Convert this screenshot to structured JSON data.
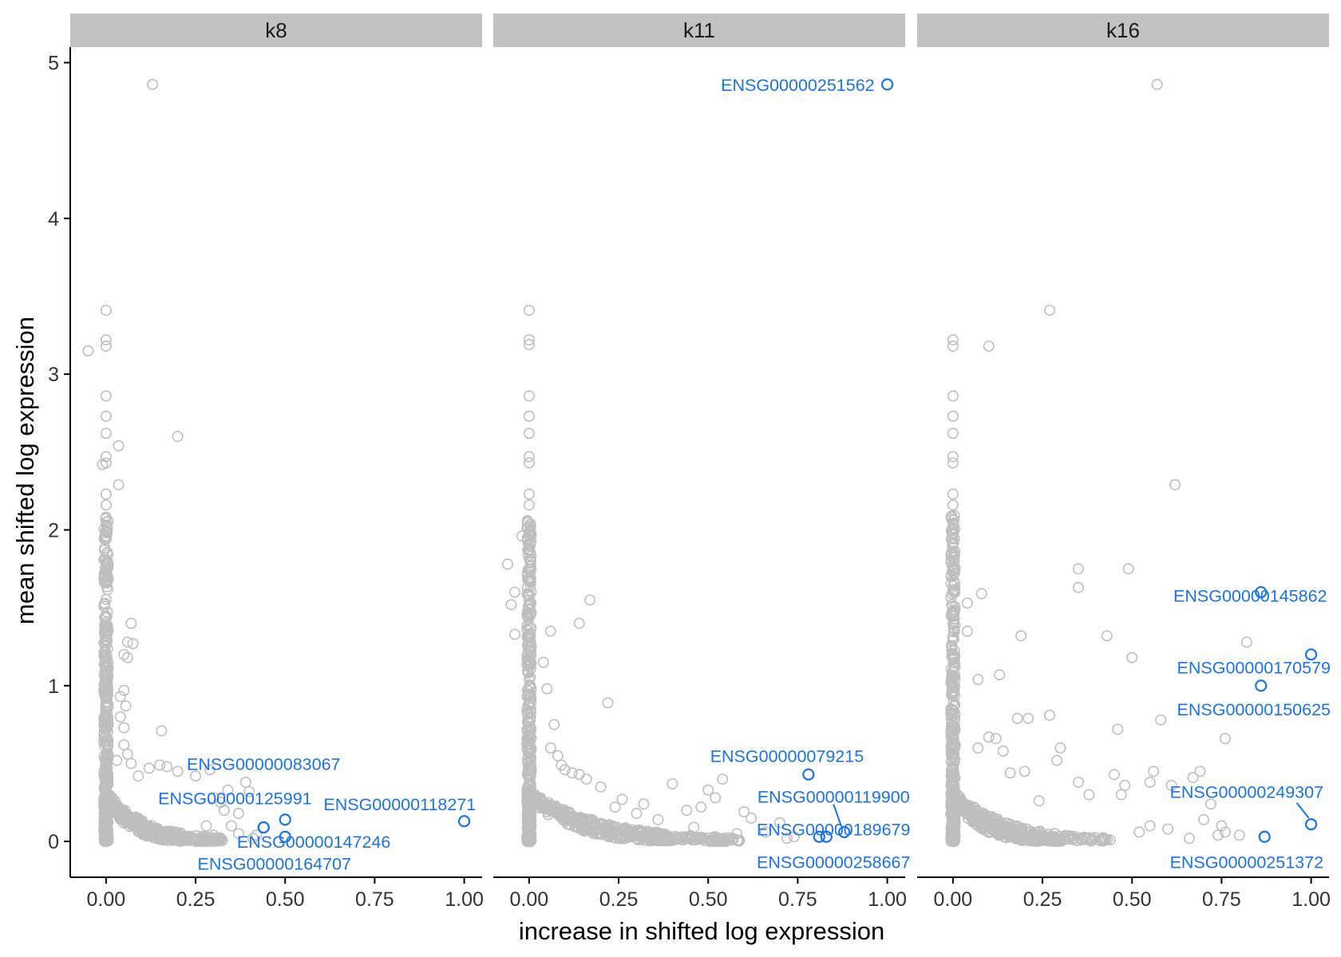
{
  "chart_data": {
    "type": "scatter",
    "facets": [
      "k8",
      "k11",
      "k16"
    ],
    "xlabel": "increase in shifted log expression",
    "ylabel": "mean shifted log expression",
    "xlim": [
      -0.1,
      1.05
    ],
    "ylim": [
      -0.23,
      5.1
    ],
    "x_ticks": [
      0,
      0.25,
      0.5,
      0.75,
      1
    ],
    "x_tick_labels": [
      "0.00",
      "0.25",
      "0.50",
      "0.75",
      "1.00"
    ],
    "y_ticks": [
      0,
      1,
      2,
      3,
      4,
      5
    ],
    "y_tick_labels": [
      "0",
      "1",
      "2",
      "3",
      "4",
      "5"
    ],
    "background_color": "#bebebe",
    "highlight_color": "#1a73e8",
    "strip_color": "#c2c2c2",
    "grid": false,
    "legend": "none",
    "panels": [
      {
        "name": "k8",
        "highlighted": [
          {
            "label": "ENSG00000083067",
            "x": 0.44,
            "y": 0.09
          },
          {
            "label": "ENSG00000125991",
            "x": 0.5,
            "y": 0.14
          },
          {
            "label": "ENSG00000118271",
            "x": 1.0,
            "y": 0.13
          },
          {
            "label": "ENSG00000147246",
            "x": 0.5,
            "y": 0.03
          },
          {
            "label": "ENSG00000164707",
            "x": 0.44,
            "y": 0.09
          }
        ],
        "background": [
          [
            -0.05,
            3.15
          ],
          [
            0.0,
            3.41
          ],
          [
            0.0,
            3.22
          ],
          [
            0.0,
            3.18
          ],
          [
            0.0,
            2.86
          ],
          [
            0.0,
            2.73
          ],
          [
            0.0,
            2.62
          ],
          [
            0.0,
            2.47
          ],
          [
            0.0,
            2.43
          ],
          [
            -0.01,
            2.42
          ],
          [
            0.035,
            2.54
          ],
          [
            0.035,
            2.29
          ],
          [
            0.0,
            2.23
          ],
          [
            0.0,
            2.16
          ],
          [
            0.0,
            2.05
          ],
          [
            0.2,
            2.6
          ],
          [
            0.13,
            4.86
          ],
          [
            0.07,
            1.4
          ],
          [
            0.06,
            1.28
          ],
          [
            0.075,
            1.27
          ],
          [
            0.05,
            1.2
          ],
          [
            0.06,
            1.18
          ],
          [
            0.05,
            0.97
          ],
          [
            0.04,
            0.93
          ],
          [
            0.055,
            0.87
          ],
          [
            0.04,
            0.8
          ],
          [
            0.05,
            0.73
          ],
          [
            0.155,
            0.71
          ],
          [
            0.05,
            0.62
          ],
          [
            0.06,
            0.56
          ],
          [
            0.03,
            0.52
          ],
          [
            0.07,
            0.5
          ],
          [
            0.15,
            0.49
          ],
          [
            0.17,
            0.48
          ],
          [
            0.12,
            0.47
          ],
          [
            0.2,
            0.45
          ],
          [
            0.29,
            0.46
          ],
          [
            0.25,
            0.42
          ],
          [
            0.09,
            0.42
          ],
          [
            0.39,
            0.38
          ],
          [
            0.4,
            0.32
          ],
          [
            0.34,
            0.33
          ],
          [
            0.3,
            0.28
          ],
          [
            0.32,
            0.25
          ],
          [
            0.33,
            0.2
          ],
          [
            0.37,
            0.18
          ],
          [
            0.35,
            0.1
          ],
          [
            0.37,
            0.05
          ],
          [
            0.42,
            0.04
          ],
          [
            0.41,
            0.02
          ],
          [
            0.3,
            0.04
          ],
          [
            0.28,
            0.1
          ]
        ],
        "segments": [
          [
            0.0,
            0.0,
            0.22,
            0.02
          ],
          [
            0.0,
            0.0,
            0.33,
            0.03
          ],
          [
            0.0,
            0.0,
            0.28,
            0.01
          ]
        ]
      },
      {
        "name": "k11",
        "highlighted": [
          {
            "label": "ENSG00000251562",
            "x": 1.0,
            "y": 4.86
          },
          {
            "label": "ENSG00000079215",
            "x": 0.78,
            "y": 0.43
          },
          {
            "label": "ENSG00000119900",
            "x": 0.88,
            "y": 0.06
          },
          {
            "label": "ENSG00000189679",
            "x": 0.83,
            "y": 0.03
          },
          {
            "label": "ENSG00000258667",
            "x": 0.81,
            "y": 0.03
          }
        ],
        "background": [
          [
            0.0,
            3.41
          ],
          [
            0.0,
            3.22
          ],
          [
            0.0,
            3.19
          ],
          [
            0.0,
            2.86
          ],
          [
            0.0,
            2.73
          ],
          [
            0.0,
            2.62
          ],
          [
            0.0,
            2.47
          ],
          [
            0.0,
            2.43
          ],
          [
            0.0,
            2.23
          ],
          [
            0.0,
            2.16
          ],
          [
            -0.06,
            1.78
          ],
          [
            -0.02,
            1.96
          ],
          [
            -0.04,
            1.6
          ],
          [
            -0.05,
            1.52
          ],
          [
            0.0,
            1.55
          ],
          [
            0.17,
            1.55
          ],
          [
            0.14,
            1.4
          ],
          [
            -0.04,
            1.33
          ],
          [
            0.06,
            1.35
          ],
          [
            0.04,
            1.15
          ],
          [
            0.05,
            0.98
          ],
          [
            0.22,
            0.89
          ],
          [
            0.07,
            0.75
          ],
          [
            0.06,
            0.6
          ],
          [
            0.08,
            0.55
          ],
          [
            0.09,
            0.49
          ],
          [
            0.1,
            0.46
          ],
          [
            0.12,
            0.44
          ],
          [
            0.14,
            0.43
          ],
          [
            0.16,
            0.4
          ],
          [
            0.2,
            0.35
          ],
          [
            0.26,
            0.27
          ],
          [
            0.32,
            0.24
          ],
          [
            0.4,
            0.37
          ],
          [
            0.5,
            0.33
          ],
          [
            0.54,
            0.4
          ],
          [
            0.52,
            0.28
          ],
          [
            0.48,
            0.22
          ],
          [
            0.44,
            0.2
          ],
          [
            0.6,
            0.19
          ],
          [
            0.62,
            0.15
          ],
          [
            0.7,
            0.12
          ],
          [
            0.66,
            0.06
          ],
          [
            0.74,
            0.03
          ],
          [
            0.72,
            0.02
          ],
          [
            0.58,
            0.05
          ],
          [
            0.46,
            0.09
          ],
          [
            0.36,
            0.14
          ],
          [
            0.3,
            0.18
          ],
          [
            0.24,
            0.22
          ]
        ],
        "segments": [
          [
            0.0,
            0.0,
            0.4,
            0.02
          ],
          [
            0.0,
            0.0,
            0.55,
            0.03
          ],
          [
            0.0,
            0.0,
            0.6,
            0.01
          ]
        ]
      },
      {
        "name": "k16",
        "highlighted": [
          {
            "label": "ENSG00000145862",
            "x": 0.86,
            "y": 1.6
          },
          {
            "label": "ENSG00000170579",
            "x": 1.0,
            "y": 1.2
          },
          {
            "label": "ENSG00000150625",
            "x": 0.86,
            "y": 1.0
          },
          {
            "label": "ENSG00000249307",
            "x": 1.0,
            "y": 0.11
          },
          {
            "label": "ENSG00000251372",
            "x": 0.87,
            "y": 0.03
          }
        ],
        "background": [
          [
            0.57,
            4.86
          ],
          [
            0.27,
            3.41
          ],
          [
            0.0,
            3.22
          ],
          [
            0.0,
            3.18
          ],
          [
            0.1,
            3.18
          ],
          [
            0.0,
            2.86
          ],
          [
            0.0,
            2.73
          ],
          [
            0.0,
            2.62
          ],
          [
            0.0,
            2.47
          ],
          [
            0.0,
            2.43
          ],
          [
            0.62,
            2.29
          ],
          [
            0.0,
            2.23
          ],
          [
            0.0,
            2.16
          ],
          [
            0.35,
            1.75
          ],
          [
            0.49,
            1.75
          ],
          [
            0.35,
            1.63
          ],
          [
            0.08,
            1.59
          ],
          [
            0.04,
            1.53
          ],
          [
            0.82,
            1.28
          ],
          [
            0.43,
            1.32
          ],
          [
            0.19,
            1.32
          ],
          [
            0.04,
            1.35
          ],
          [
            0.5,
            1.18
          ],
          [
            0.13,
            1.07
          ],
          [
            0.07,
            1.04
          ],
          [
            0.58,
            0.78
          ],
          [
            0.27,
            0.81
          ],
          [
            0.21,
            0.79
          ],
          [
            0.18,
            0.79
          ],
          [
            0.46,
            0.72
          ],
          [
            0.76,
            0.66
          ],
          [
            0.3,
            0.6
          ],
          [
            0.12,
            0.66
          ],
          [
            0.1,
            0.67
          ],
          [
            0.14,
            0.58
          ],
          [
            0.07,
            0.6
          ],
          [
            0.29,
            0.52
          ],
          [
            0.45,
            0.43
          ],
          [
            0.56,
            0.45
          ],
          [
            0.69,
            0.45
          ],
          [
            0.67,
            0.41
          ],
          [
            0.47,
            0.3
          ],
          [
            0.48,
            0.36
          ],
          [
            0.55,
            0.38
          ],
          [
            0.61,
            0.36
          ],
          [
            0.72,
            0.24
          ],
          [
            0.7,
            0.14
          ],
          [
            0.75,
            0.1
          ],
          [
            0.76,
            0.06
          ],
          [
            0.74,
            0.04
          ],
          [
            0.8,
            0.04
          ],
          [
            0.66,
            0.02
          ],
          [
            0.55,
            0.1
          ],
          [
            0.6,
            0.08
          ],
          [
            0.52,
            0.06
          ],
          [
            0.38,
            0.3
          ],
          [
            0.35,
            0.38
          ],
          [
            0.24,
            0.26
          ],
          [
            0.2,
            0.45
          ],
          [
            0.16,
            0.44
          ]
        ],
        "segments": [
          [
            0.0,
            0.0,
            0.31,
            0.02
          ],
          [
            0.0,
            0.0,
            0.44,
            0.03
          ],
          [
            0.0,
            0.0,
            0.25,
            0.01
          ]
        ]
      }
    ]
  }
}
